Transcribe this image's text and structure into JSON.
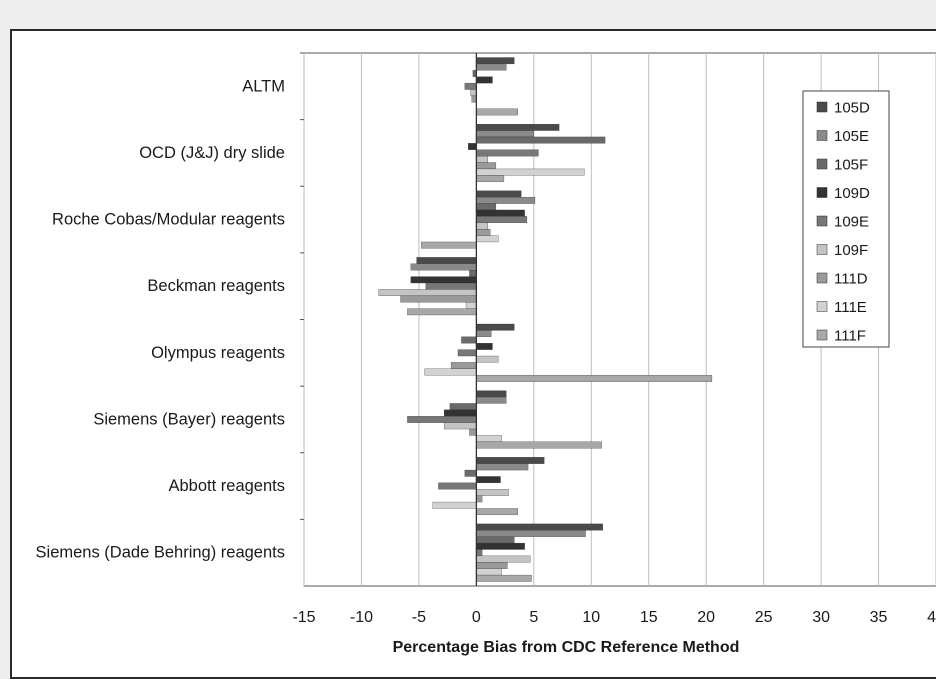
{
  "chart_data": {
    "type": "bar",
    "orientation": "horizontal",
    "xlabel": "Percentage Bias from CDC Reference Method",
    "ylabel": "",
    "xlim": [
      -15,
      40
    ],
    "x_ticks": [
      -15,
      -10,
      -5,
      0,
      5,
      10,
      15,
      20,
      25,
      30,
      35,
      40
    ],
    "grid": "vertical",
    "legend_position": "top-right",
    "categories": [
      "ALTM",
      "OCD (J&J) dry slide",
      "Roche Cobas/Modular reagents",
      "Beckman reagents",
      "Olympus reagents",
      "Siemens (Bayer) reagents",
      "Abbott reagents",
      "Siemens (Dade Behring) reagents"
    ],
    "series": [
      {
        "name": "105D",
        "color": "#4a4a4a",
        "values": [
          3.3,
          7.2,
          3.9,
          -5.2,
          3.3,
          2.6,
          5.9,
          11.0
        ]
      },
      {
        "name": "105E",
        "color": "#8a8a8a",
        "values": [
          2.6,
          5.0,
          5.1,
          -5.7,
          1.3,
          2.6,
          4.5,
          9.5
        ]
      },
      {
        "name": "105F",
        "color": "#6a6a6a",
        "values": [
          -0.3,
          11.2,
          1.7,
          -0.6,
          -1.3,
          -2.3,
          -1.0,
          3.3
        ]
      },
      {
        "name": "109D",
        "color": "#333333",
        "values": [
          1.4,
          -0.7,
          4.2,
          -5.7,
          1.4,
          -2.8,
          2.1,
          4.2
        ]
      },
      {
        "name": "109E",
        "color": "#777777",
        "values": [
          -1.0,
          5.4,
          4.4,
          -4.4,
          -1.6,
          -6.0,
          -3.3,
          0.5
        ]
      },
      {
        "name": "109F",
        "color": "#c4c4c4",
        "values": [
          -0.5,
          1.0,
          1.0,
          -8.5,
          1.9,
          -2.8,
          2.8,
          4.7
        ]
      },
      {
        "name": "111D",
        "color": "#9a9a9a",
        "values": [
          -0.4,
          1.7,
          1.2,
          -6.6,
          -2.2,
          -0.6,
          0.5,
          2.7
        ]
      },
      {
        "name": "111E",
        "color": "#d2d2d2",
        "values": [
          0.0,
          9.4,
          1.9,
          -0.9,
          -4.5,
          2.2,
          -3.8,
          2.2
        ]
      },
      {
        "name": "111F",
        "color": "#a8a8a8",
        "values": [
          3.6,
          2.4,
          -4.8,
          -6.0,
          20.5,
          10.9,
          3.6,
          4.8
        ]
      }
    ]
  }
}
